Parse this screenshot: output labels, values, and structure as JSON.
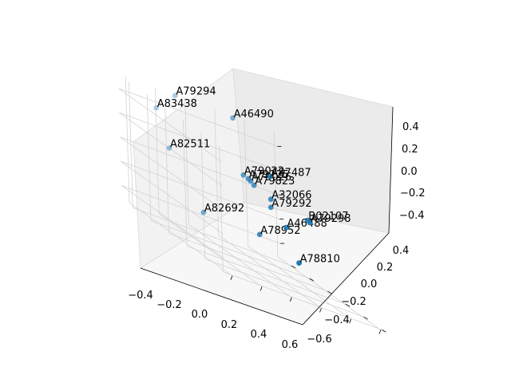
{
  "chart_data": {
    "type": "scatter",
    "projection": "3d",
    "title": "",
    "xlabel": "",
    "ylabel": "",
    "zlabel": "",
    "grid": true,
    "marker_color": "#1f77b4",
    "xticks": [
      "−0.4",
      "−0.2",
      "0.0",
      "0.2",
      "0.4",
      "0.6"
    ],
    "yticks": [
      "−0.6",
      "−0.4",
      "−0.2",
      "0.0",
      "0.2",
      "0.4"
    ],
    "zticks": [
      "−0.4",
      "−0.2",
      "0.0",
      "0.2",
      "0.4"
    ],
    "points": [
      {
        "label": "A79294",
        "x": -0.15,
        "y": 0.38,
        "z": 0.55
      },
      {
        "label": "A46490",
        "x": 0.28,
        "y": 0.45,
        "z": 0.52
      },
      {
        "label": "A83438",
        "x": -0.42,
        "y": 0.15,
        "z": 0.45
      },
      {
        "label": "A79022",
        "x": 0.1,
        "y": 0.05,
        "z": 0.18
      },
      {
        "label": "A87487",
        "x": 0.3,
        "y": 0.08,
        "z": 0.24
      },
      {
        "label": "A79125",
        "x": 0.12,
        "y": 0.03,
        "z": 0.17
      },
      {
        "label": "A79026",
        "x": 0.13,
        "y": 0.02,
        "z": 0.16
      },
      {
        "label": "A79823",
        "x": 0.14,
        "y": 0.0,
        "z": 0.14
      },
      {
        "label": "A32066",
        "x": 0.24,
        "y": -0.02,
        "z": 0.08
      },
      {
        "label": "A79292",
        "x": 0.22,
        "y": -0.05,
        "z": 0.02
      },
      {
        "label": "B02107",
        "x": 0.57,
        "y": 0.12,
        "z": -0.02
      },
      {
        "label": "A79298",
        "x": 0.58,
        "y": 0.11,
        "z": -0.03
      },
      {
        "label": "A82511",
        "x": -0.4,
        "y": 0.05,
        "z": 0.18
      },
      {
        "label": "A46488",
        "x": 0.2,
        "y": -0.25,
        "z": -0.05
      },
      {
        "label": "A78952",
        "x": 0.0,
        "y": -0.28,
        "z": -0.18
      },
      {
        "label": "A82692",
        "x": -0.3,
        "y": -0.15,
        "z": -0.2
      },
      {
        "label": "A78810",
        "x": 0.22,
        "y": -0.35,
        "z": -0.28
      }
    ]
  }
}
